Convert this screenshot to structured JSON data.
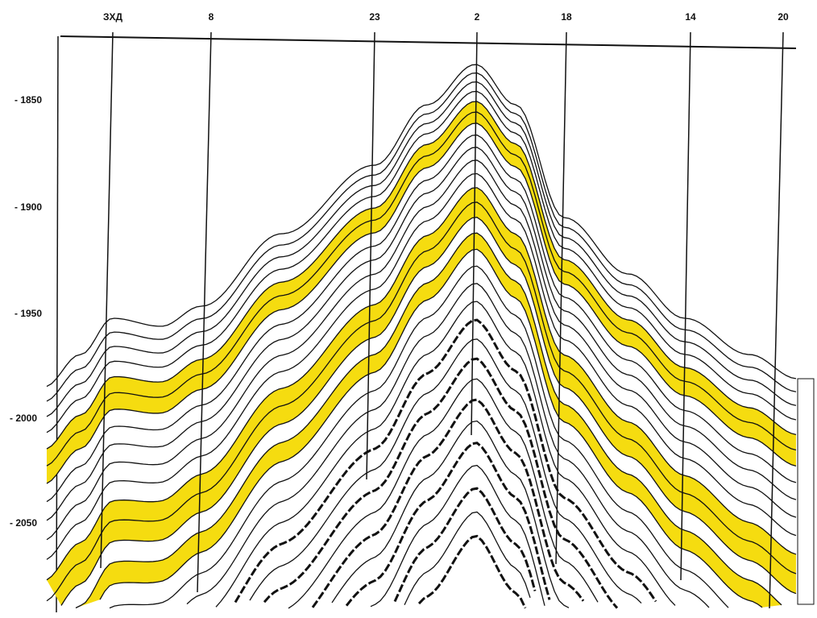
{
  "wells": [
    "ЗХД",
    "8",
    "23",
    "2",
    "18",
    "14",
    "20"
  ],
  "depth_labels": [
    "- 1850",
    "- 1900",
    "- 1950",
    "- 2000",
    "- 2050"
  ]
}
